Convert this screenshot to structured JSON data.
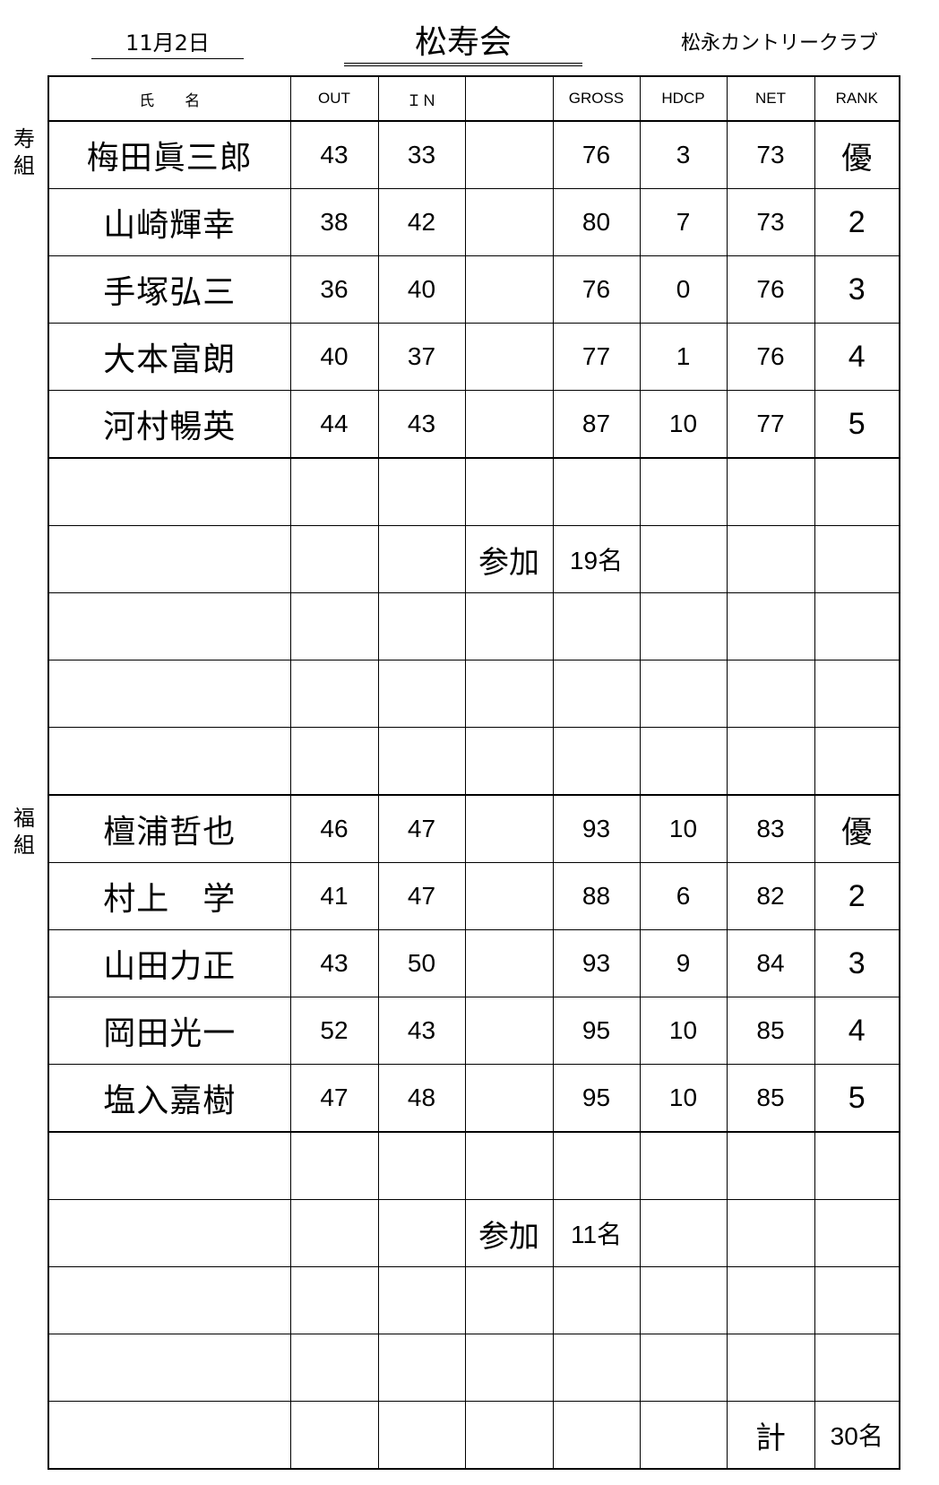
{
  "header": {
    "date": "11月2日",
    "title": "松寿会",
    "club": "松永カントリークラブ"
  },
  "columns": [
    "氏　　名",
    "OUT",
    "ＩＮ",
    "",
    "GROSS",
    "HDCP",
    "NET",
    "RANK"
  ],
  "groups": [
    {
      "label": "寿\n組",
      "rows": [
        [
          "梅田眞三郎",
          "43",
          "33",
          "",
          "76",
          "3",
          "73",
          "優"
        ],
        [
          "山崎輝幸",
          "38",
          "42",
          "",
          "80",
          "7",
          "73",
          "2"
        ],
        [
          "手塚弘三",
          "36",
          "40",
          "",
          "76",
          "0",
          "76",
          "3"
        ],
        [
          "大本富朗",
          "40",
          "37",
          "",
          "77",
          "1",
          "76",
          "4"
        ],
        [
          "河村暢英",
          "44",
          "43",
          "",
          "87",
          "10",
          "77",
          "5"
        ]
      ],
      "participation_label": "参加",
      "participation": "19名"
    },
    {
      "label": "福\n組",
      "rows": [
        [
          "檀浦哲也",
          "46",
          "47",
          "",
          "93",
          "10",
          "83",
          "優"
        ],
        [
          "村上　学",
          "41",
          "47",
          "",
          "88",
          "6",
          "82",
          "2"
        ],
        [
          "山田力正",
          "43",
          "50",
          "",
          "93",
          "9",
          "84",
          "3"
        ],
        [
          "岡田光一",
          "52",
          "43",
          "",
          "95",
          "10",
          "85",
          "4"
        ],
        [
          "塩入嘉樹",
          "47",
          "48",
          "",
          "95",
          "10",
          "85",
          "5"
        ]
      ],
      "participation_label": "参加",
      "participation": "11名"
    }
  ],
  "total_label": "計",
  "total": "30名"
}
